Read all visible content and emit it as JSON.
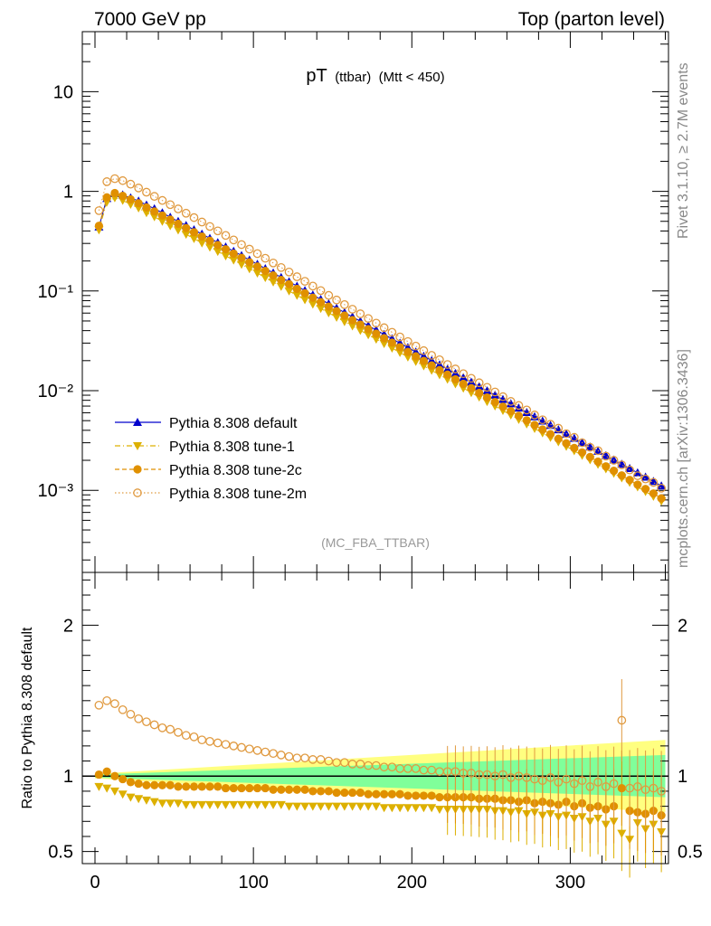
{
  "header": {
    "left": "7000 GeV pp",
    "right": "Top (parton level)"
  },
  "side_labels": {
    "rivet": "Rivet 3.1.10, ≥ 2.7M events",
    "mcplots": "mcplots.cern.ch [arXiv:1306.3436]"
  },
  "plot_title": {
    "main": "pT",
    "sub1": "(ttbar)",
    "sub2": "(Mtt < 450)"
  },
  "analysis_label": "(MC_FBA_TTBAR)",
  "ratio_ylabel": "Ratio to Pythia 8.308 default",
  "colors": {
    "default": "#0000cc",
    "tune1": "#ddb000",
    "tune2c": "#e09000",
    "tune2m": "#e09a40",
    "band_yellow": "#ffff80",
    "band_green": "#80ff9a"
  },
  "chart_data": [
    {
      "type": "scatter",
      "yscale": "log",
      "xlim": [
        -8,
        362
      ],
      "ylim": [
        0.00015,
        40
      ],
      "y_tick_labels": [
        "10",
        "1",
        "10⁻¹",
        "10⁻²",
        "10⁻³"
      ],
      "legend_position": "lower-left",
      "x": [
        2.5,
        7.5,
        12.5,
        17.5,
        22.5,
        27.5,
        32.5,
        37.5,
        42.5,
        47.5,
        52.5,
        57.5,
        62.5,
        67.5,
        72.5,
        77.5,
        82.5,
        87.5,
        92.5,
        97.5,
        102.5,
        107.5,
        112.5,
        117.5,
        122.5,
        127.5,
        132.5,
        137.5,
        142.5,
        147.5,
        152.5,
        157.5,
        162.5,
        167.5,
        172.5,
        177.5,
        182.5,
        187.5,
        192.5,
        197.5,
        202.5,
        207.5,
        212.5,
        217.5,
        222.5,
        227.5,
        232.5,
        237.5,
        242.5,
        247.5,
        252.5,
        257.5,
        262.5,
        267.5,
        272.5,
        277.5,
        282.5,
        287.5,
        292.5,
        297.5,
        302.5,
        307.5,
        312.5,
        317.5,
        322.5,
        327.5,
        332.5,
        337.5,
        342.5,
        347.5,
        352.5,
        357.5
      ],
      "series": [
        {
          "name": "Pythia 8.308 default",
          "key": "default",
          "marker": "triangle-up",
          "line": "solid",
          "values": [
            0.44,
            0.85,
            0.95,
            0.92,
            0.86,
            0.8,
            0.73,
            0.67,
            0.61,
            0.55,
            0.5,
            0.455,
            0.412,
            0.373,
            0.338,
            0.306,
            0.277,
            0.251,
            0.227,
            0.205,
            0.186,
            0.168,
            0.152,
            0.137,
            0.124,
            0.112,
            0.101,
            0.0913,
            0.0825,
            0.0745,
            0.0673,
            0.0608,
            0.055,
            0.0497,
            0.0449,
            0.0406,
            0.0367,
            0.0332,
            0.03,
            0.0271,
            0.0245,
            0.0222,
            0.0201,
            0.0182,
            0.0164,
            0.0149,
            0.0135,
            0.0122,
            0.011,
            0.00997,
            0.00903,
            0.00817,
            0.0074,
            0.0067,
            0.00606,
            0.00548,
            0.00496,
            0.00449,
            0.00406,
            0.00368,
            0.00333,
            0.00301,
            0.00273,
            0.00247,
            0.00223,
            0.00202,
            0.00183,
            0.00166,
            0.0015,
            0.00136,
            0.00123,
            0.00111
          ]
        },
        {
          "name": "Pythia 8.308 tune-1",
          "key": "tune1",
          "marker": "triangle-down",
          "line": "dashdot",
          "values": [
            0.41,
            0.78,
            0.86,
            0.81,
            0.74,
            0.68,
            0.61,
            0.555,
            0.5,
            0.452,
            0.409,
            0.37,
            0.335,
            0.303,
            0.275,
            0.249,
            0.225,
            0.204,
            0.185,
            0.167,
            0.151,
            0.136,
            0.123,
            0.111,
            0.1,
            0.0904,
            0.0817,
            0.0738,
            0.0667,
            0.0603,
            0.0545,
            0.0492,
            0.0445,
            0.0402,
            0.0363,
            0.0328,
            0.0296,
            0.0267,
            0.0241,
            0.0217,
            0.0196,
            0.0177,
            0.016,
            0.0144,
            0.013,
            0.0117,
            0.0106,
            0.00955,
            0.00861,
            0.00776,
            0.007,
            0.00631,
            0.00569,
            0.00513,
            0.00463,
            0.00417,
            0.00376,
            0.00339,
            0.00306,
            0.00276,
            0.00249,
            0.00224,
            0.00202,
            0.00182,
            0.00164,
            0.00148,
            0.00133,
            0.0012,
            0.00108,
            0.00097,
            0.00087,
            0.00078
          ]
        },
        {
          "name": "Pythia 8.308 tune-2c",
          "key": "tune2c",
          "marker": "circle",
          "line": "dashed",
          "values": [
            0.45,
            0.87,
            0.96,
            0.9,
            0.83,
            0.76,
            0.69,
            0.628,
            0.572,
            0.52,
            0.472,
            0.428,
            0.388,
            0.352,
            0.319,
            0.289,
            0.262,
            0.237,
            0.215,
            0.194,
            0.176,
            0.159,
            0.143,
            0.129,
            0.117,
            0.105,
            0.0949,
            0.0856,
            0.0772,
            0.0697,
            0.0628,
            0.0566,
            0.051,
            0.046,
            0.0414,
            0.0373,
            0.0336,
            0.0303,
            0.0273,
            0.0245,
            0.0221,
            0.0199,
            0.0179,
            0.0161,
            0.0145,
            0.013,
            0.0117,
            0.0106,
            0.00949,
            0.00854,
            0.00768,
            0.00691,
            0.00622,
            0.00559,
            0.00503,
            0.00452,
            0.00407,
            0.00366,
            0.00329,
            0.00296,
            0.00266,
            0.0024,
            0.00216,
            0.00194,
            0.00174,
            0.00157,
            0.00141,
            0.00127,
            0.00114,
            0.00103,
            0.00093,
            0.00083
          ]
        },
        {
          "name": "Pythia 8.308 tune-2m",
          "key": "tune2m",
          "marker": "open-circle",
          "line": "dotted",
          "values": [
            0.64,
            1.25,
            1.34,
            1.28,
            1.18,
            1.08,
            0.98,
            0.89,
            0.81,
            0.735,
            0.666,
            0.603,
            0.545,
            0.492,
            0.444,
            0.401,
            0.361,
            0.325,
            0.292,
            0.263,
            0.237,
            0.213,
            0.191,
            0.172,
            0.155,
            0.139,
            0.125,
            0.112,
            0.101,
            0.0903,
            0.0812,
            0.073,
            0.0656,
            0.059,
            0.053,
            0.0476,
            0.0428,
            0.0385,
            0.0346,
            0.0311,
            0.028,
            0.0252,
            0.0226,
            0.0204,
            0.0183,
            0.0165,
            0.0148,
            0.0133,
            0.012,
            0.0108,
            0.0097,
            0.0087,
            0.0078,
            0.0071,
            0.0064,
            0.0057,
            0.0051,
            0.0046,
            0.0042,
            0.0037,
            0.0034,
            0.003,
            0.0027,
            0.0025,
            0.0022,
            0.002,
            0.0018,
            0.0016,
            0.0014,
            0.0013,
            0.0012,
            0.00105
          ]
        }
      ]
    },
    {
      "type": "scatter",
      "xlim": [
        -8,
        362
      ],
      "ylim": [
        0.42,
        2.35
      ],
      "x_tick_labels": [
        "0",
        "100",
        "200",
        "300"
      ],
      "y_tick_labels": [
        "2",
        "1",
        "0.5"
      ],
      "reference_line": 1,
      "band_yellow": {
        "x": [
          0,
          360
        ],
        "low": [
          0.985,
          0.76
        ],
        "high": [
          1.015,
          1.24
        ]
      },
      "band_green": {
        "x": [
          0,
          360
        ],
        "low": [
          0.99,
          0.86
        ],
        "high": [
          1.01,
          1.14
        ]
      },
      "series": [
        {
          "name": "Pythia 8.308 tune-1",
          "key": "tune1",
          "marker": "triangle-down",
          "values": [
            0.93,
            0.92,
            0.9,
            0.88,
            0.86,
            0.85,
            0.84,
            0.83,
            0.82,
            0.82,
            0.82,
            0.81,
            0.81,
            0.81,
            0.81,
            0.81,
            0.81,
            0.81,
            0.81,
            0.81,
            0.81,
            0.81,
            0.81,
            0.81,
            0.8,
            0.8,
            0.8,
            0.8,
            0.8,
            0.8,
            0.8,
            0.8,
            0.8,
            0.8,
            0.8,
            0.8,
            0.79,
            0.79,
            0.79,
            0.79,
            0.79,
            0.79,
            0.79,
            0.78,
            0.78,
            0.78,
            0.78,
            0.78,
            0.78,
            0.78,
            0.77,
            0.77,
            0.76,
            0.77,
            0.75,
            0.76,
            0.74,
            0.75,
            0.73,
            0.74,
            0.72,
            0.73,
            0.7,
            0.72,
            0.68,
            0.7,
            0.62,
            0.58,
            0.69,
            0.65,
            0.68,
            0.63
          ]
        },
        {
          "name": "Pythia 8.308 tune-2c",
          "key": "tune2c",
          "marker": "circle",
          "values": [
            1.01,
            1.03,
            1.0,
            0.98,
            0.96,
            0.95,
            0.94,
            0.94,
            0.94,
            0.94,
            0.93,
            0.93,
            0.93,
            0.93,
            0.93,
            0.93,
            0.92,
            0.92,
            0.92,
            0.92,
            0.92,
            0.92,
            0.91,
            0.91,
            0.91,
            0.91,
            0.91,
            0.9,
            0.9,
            0.9,
            0.89,
            0.89,
            0.89,
            0.89,
            0.88,
            0.88,
            0.88,
            0.88,
            0.88,
            0.87,
            0.87,
            0.87,
            0.87,
            0.86,
            0.86,
            0.86,
            0.86,
            0.86,
            0.85,
            0.85,
            0.85,
            0.84,
            0.84,
            0.83,
            0.84,
            0.82,
            0.83,
            0.82,
            0.81,
            0.83,
            0.8,
            0.82,
            0.79,
            0.8,
            0.78,
            0.8,
            0.92,
            0.77,
            0.76,
            0.75,
            0.77,
            0.74
          ]
        },
        {
          "name": "Pythia 8.308 tune-2m",
          "key": "tune2m",
          "marker": "open-circle",
          "values": [
            1.47,
            1.5,
            1.48,
            1.44,
            1.41,
            1.38,
            1.36,
            1.34,
            1.32,
            1.31,
            1.29,
            1.27,
            1.26,
            1.24,
            1.23,
            1.22,
            1.21,
            1.2,
            1.19,
            1.18,
            1.17,
            1.16,
            1.15,
            1.14,
            1.13,
            1.12,
            1.12,
            1.11,
            1.11,
            1.1,
            1.09,
            1.09,
            1.08,
            1.08,
            1.07,
            1.07,
            1.06,
            1.06,
            1.05,
            1.05,
            1.05,
            1.04,
            1.04,
            1.03,
            1.03,
            1.03,
            1.02,
            1.02,
            1.01,
            1.01,
            1.0,
            1.01,
            0.99,
            1.0,
            0.99,
            0.98,
            0.97,
            0.99,
            0.96,
            0.98,
            0.95,
            0.97,
            0.93,
            0.96,
            0.93,
            0.95,
            1.37,
            0.92,
            0.93,
            0.91,
            0.92,
            0.9
          ]
        }
      ]
    }
  ]
}
